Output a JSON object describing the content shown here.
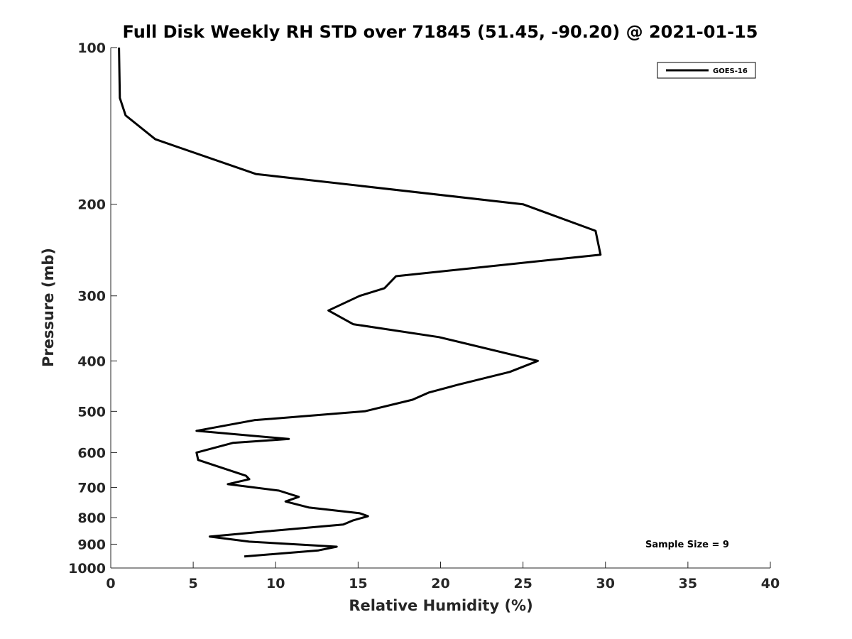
{
  "chart_data": {
    "type": "line",
    "title": "Full Disk Weekly RH STD over 71845 (51.45, -90.20) @ 2021-01-15",
    "xlabel": "Relative Humidity (%)",
    "ylabel": "Pressure (mb)",
    "xlim": [
      0,
      40
    ],
    "ylim": [
      100,
      1000
    ],
    "y_scale": "log",
    "y_reversed": true,
    "x_ticks": [
      "0",
      "5",
      "10",
      "15",
      "20",
      "25",
      "30",
      "35",
      "40"
    ],
    "y_ticks": [
      "100",
      "200",
      "300",
      "400",
      "500",
      "600",
      "700",
      "800",
      "900",
      "1000"
    ],
    "grid": false,
    "legend_position": "top-right",
    "annotation": "Sample Size = 9",
    "series": [
      {
        "name": "GOES-16",
        "color": "#000000",
        "points": [
          [
            0.5,
            100
          ],
          [
            0.55,
            125
          ],
          [
            0.9,
            135
          ],
          [
            2.7,
            150
          ],
          [
            8.8,
            175
          ],
          [
            25.0,
            200
          ],
          [
            29.4,
            225
          ],
          [
            29.7,
            250
          ],
          [
            17.3,
            275
          ],
          [
            16.6,
            290
          ],
          [
            15.1,
            300
          ],
          [
            13.2,
            320
          ],
          [
            14.7,
            340
          ],
          [
            19.9,
            360
          ],
          [
            25.9,
            400
          ],
          [
            24.2,
            420
          ],
          [
            21.0,
            445
          ],
          [
            19.3,
            460
          ],
          [
            18.3,
            475
          ],
          [
            15.4,
            500
          ],
          [
            8.7,
            520
          ],
          [
            5.2,
            545
          ],
          [
            10.8,
            565
          ],
          [
            7.4,
            575
          ],
          [
            5.2,
            600
          ],
          [
            5.3,
            620
          ],
          [
            8.2,
            665
          ],
          [
            8.4,
            675
          ],
          [
            7.1,
            690
          ],
          [
            10.2,
            710
          ],
          [
            11.4,
            730
          ],
          [
            10.6,
            745
          ],
          [
            12.0,
            765
          ],
          [
            15.1,
            785
          ],
          [
            15.6,
            795
          ],
          [
            14.7,
            810
          ],
          [
            14.1,
            825
          ],
          [
            9.5,
            850
          ],
          [
            6.0,
            870
          ],
          [
            8.4,
            890
          ],
          [
            13.7,
            910
          ],
          [
            12.6,
            925
          ],
          [
            8.1,
            950
          ]
        ]
      }
    ]
  }
}
